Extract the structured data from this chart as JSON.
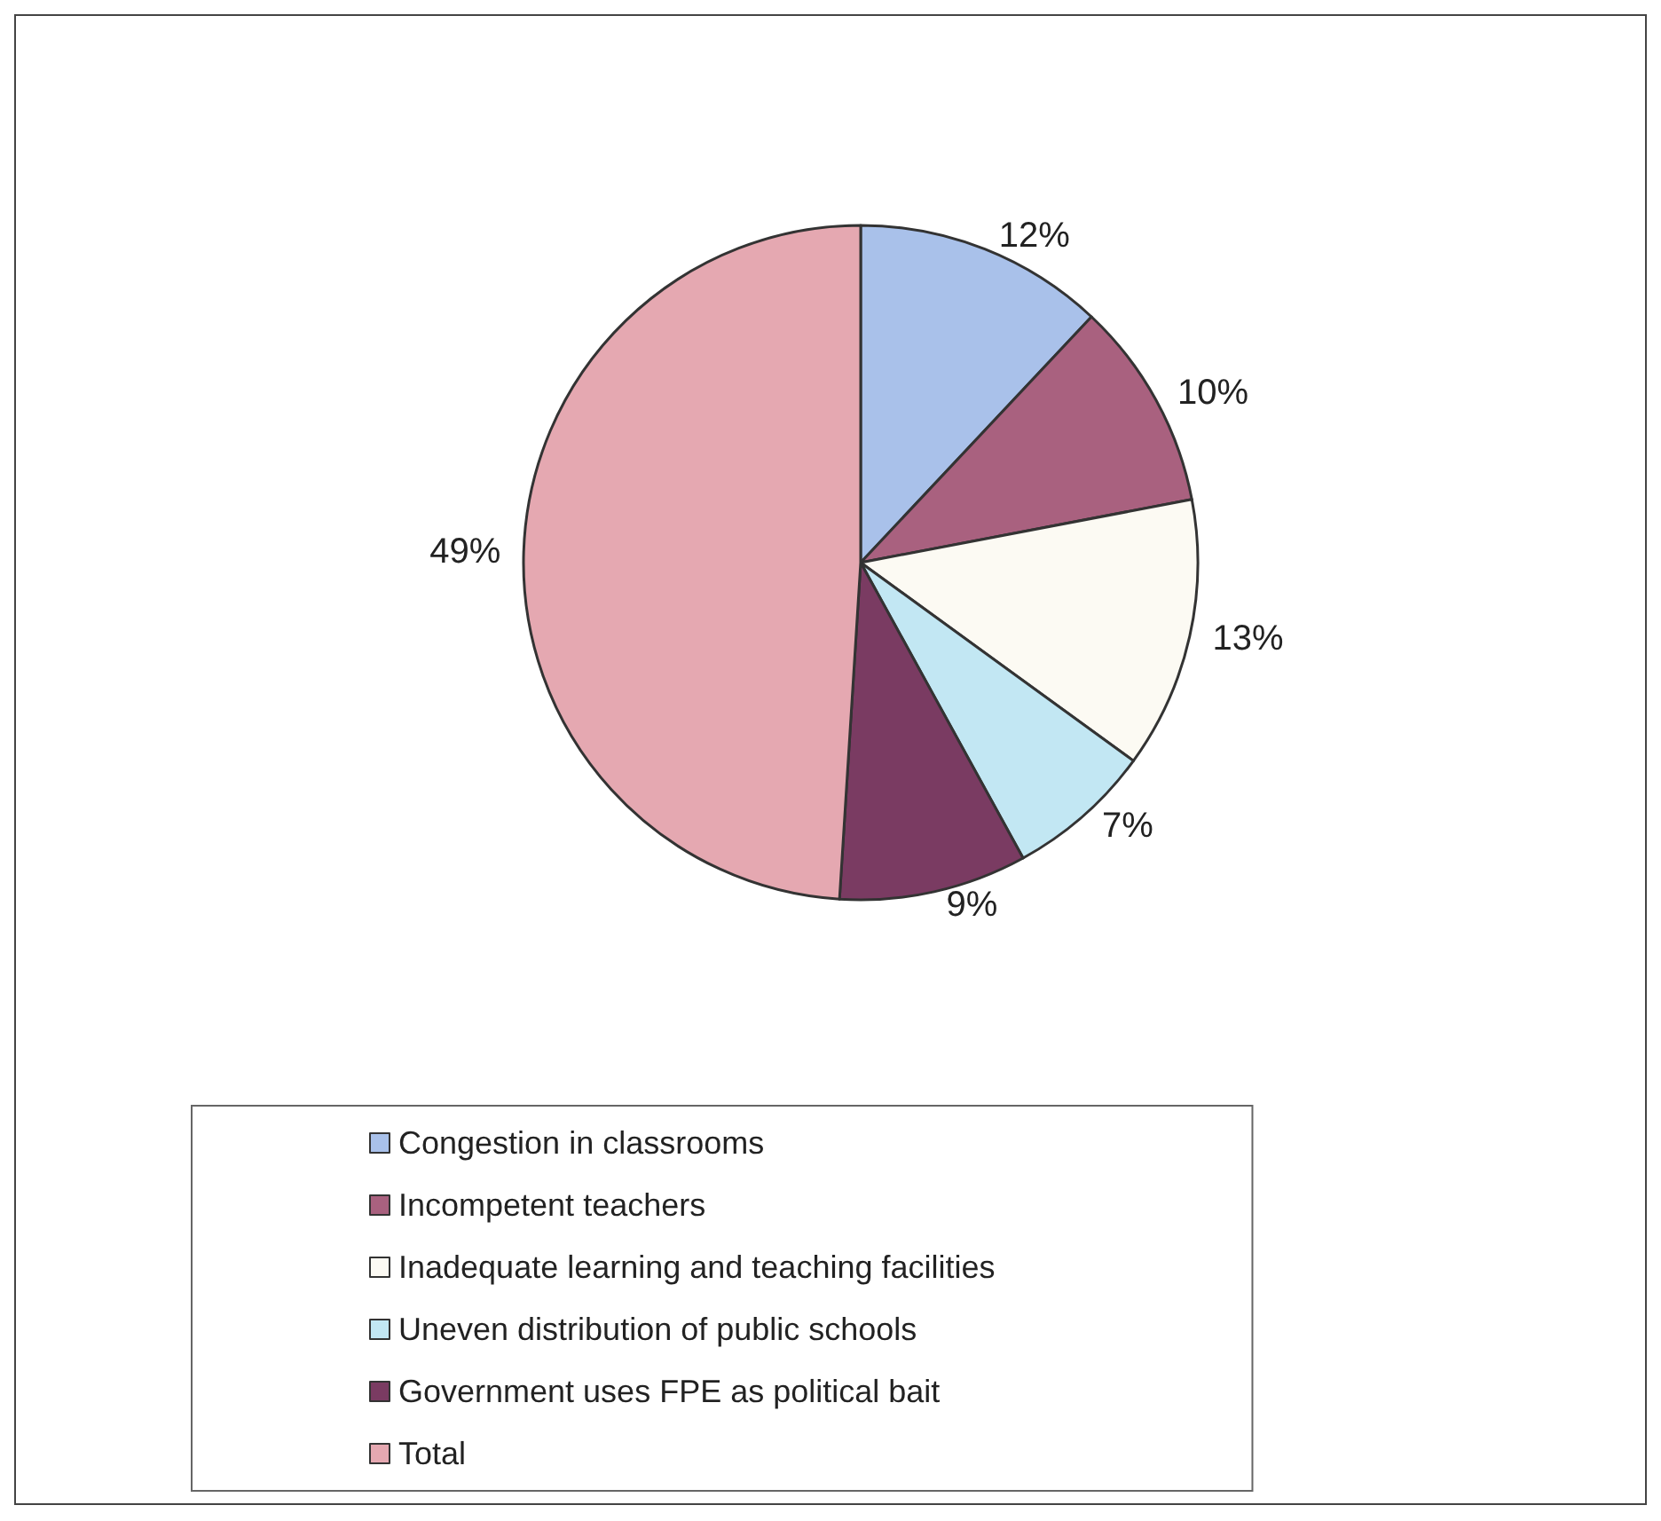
{
  "chart_data": {
    "type": "pie",
    "categories": [
      "Congestion in classrooms",
      "Incompetent teachers",
      "Inadequate learning and teaching facilities",
      "Uneven distribution of public schools",
      "Government uses FPE as political bait",
      "Total"
    ],
    "values": [
      12,
      10,
      13,
      7,
      9,
      49
    ],
    "colors": [
      "#a9c1ea",
      "#a9617f",
      "#fcfaf3",
      "#c2e7f3",
      "#7a3b62",
      "#e5a8b1"
    ],
    "value_labels": [
      "12%",
      "10%",
      "13%",
      "7%",
      "9%",
      "49%"
    ],
    "legend": "bottom"
  }
}
